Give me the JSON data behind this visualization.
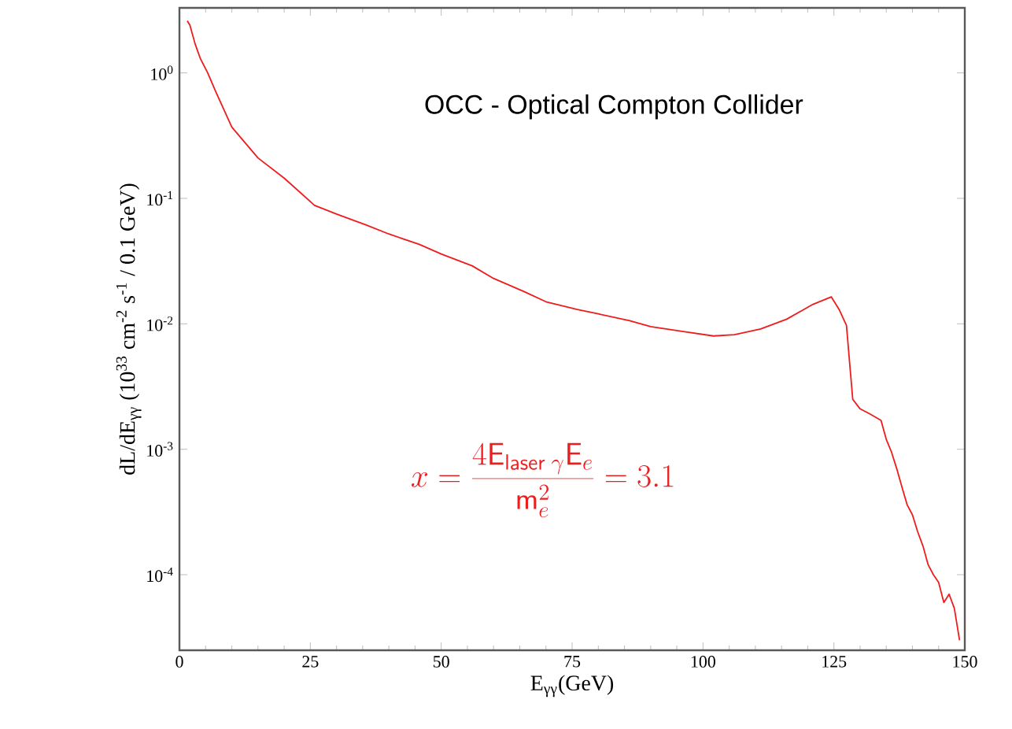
{
  "chart_data": {
    "type": "line",
    "xlabel": "E$_{γγ}$(GeV)",
    "ylabel": "dL/dE$_{γγ}$  (10$^{33}$ cm$^{-2}$ s$^{-1}$ / 0.1 GeV)",
    "annotations": [
      "OCC  -  Optical Compton Collider",
      "x=\\frac{4\\mathsf{E}_{\\mathsf{laser}\\;\\gamma}\\mathsf{E}_{e}}{\\mathsf{m}_{e}^{2}}=3.1"
    ],
    "log": "y",
    "grid": false,
    "marker": "none",
    "line_style": "solid",
    "xlim": [
      0,
      150
    ],
    "ylim": [
      2.5e-05,
      3.3
    ],
    "xticks": [
      0,
      25,
      50,
      75,
      100,
      125,
      150
    ],
    "yticks": [
      {
        "value": 1,
        "label": "10$^{0}$"
      },
      {
        "value": 0.1,
        "label": "10$^{-1}$"
      },
      {
        "value": 0.01,
        "label": "10$^{-2}$"
      },
      {
        "value": 0.001,
        "label": "10$^{-3}$"
      },
      {
        "value": 0.0001,
        "label": "10$^{-4}$"
      }
    ],
    "series": [
      {
        "color": "#ee1c1c",
        "x": [
          1.5,
          2,
          3,
          4,
          5.4,
          7,
          10,
          15,
          20,
          25.8,
          30,
          35.8,
          40,
          45.8,
          50,
          55.9,
          60,
          65.9,
          70,
          76,
          80,
          86,
          90,
          96,
          102,
          106,
          111,
          116,
          121,
          124.5,
          126,
          127.4,
          128,
          128.6,
          130,
          132,
          134,
          135,
          136,
          137,
          138,
          139,
          140,
          141,
          142,
          143,
          144,
          145,
          146,
          147,
          148,
          149
        ],
        "values": [
          2.6,
          2.4,
          1.7,
          1.3,
          1.0,
          0.7,
          0.37,
          0.21,
          0.145,
          0.088,
          0.075,
          0.061,
          0.052,
          0.043,
          0.036,
          0.029,
          0.023,
          0.018,
          0.015,
          0.013,
          0.012,
          0.0106,
          0.0095,
          0.0087,
          0.008,
          0.0082,
          0.0091,
          0.0109,
          0.0143,
          0.0164,
          0.013,
          0.0097,
          0.0049,
          0.0025,
          0.0021,
          0.0019,
          0.0017,
          0.0012,
          0.00095,
          0.0007,
          0.0005,
          0.00036,
          0.0003,
          0.00022,
          0.00017,
          0.00012,
          0.0001,
          8.7e-05,
          6e-05,
          7e-05,
          5.4e-05,
          3e-05
        ]
      }
    ]
  }
}
